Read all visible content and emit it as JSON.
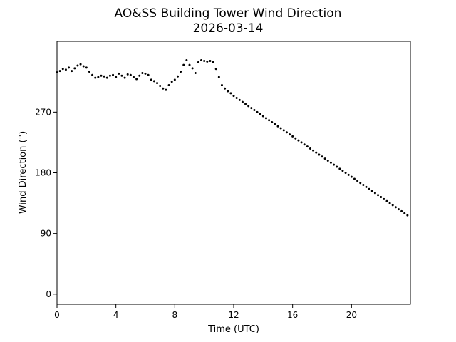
{
  "chart_data": {
    "type": "scatter",
    "title": "AO&SS Building Tower Wind Direction",
    "subtitle": "2026-03-14",
    "xlabel": "Time (UTC)",
    "ylabel": "Wind Direction (°)",
    "xlim": [
      0,
      24
    ],
    "ylim": [
      -15,
      375
    ],
    "xticks": [
      0,
      4,
      8,
      12,
      16,
      20
    ],
    "yticks": [
      0,
      90,
      180,
      270
    ],
    "grid": false,
    "marker_color": "#000000",
    "series": [
      {
        "x": [
          0.0,
          0.2,
          0.4,
          0.6,
          0.8,
          1.0,
          1.2,
          1.4,
          1.6,
          1.8,
          2.0,
          2.2,
          2.4,
          2.6,
          2.8,
          3.0,
          3.2,
          3.4,
          3.6,
          3.8,
          4.0,
          4.2,
          4.4,
          4.6,
          4.8,
          5.0,
          5.2,
          5.4,
          5.6,
          5.8,
          6.0,
          6.2,
          6.4,
          6.6,
          6.8,
          7.0,
          7.2,
          7.4,
          7.6,
          7.8,
          8.0,
          8.2,
          8.4,
          8.6,
          8.8,
          9.0,
          9.2,
          9.4,
          9.6,
          9.8,
          10.0,
          10.2,
          10.4,
          10.6,
          10.8,
          11.0,
          11.2,
          11.4,
          11.6,
          11.8,
          12.0,
          12.2,
          12.4,
          12.6,
          12.8,
          13.0,
          13.2,
          13.4,
          13.6,
          13.8,
          14.0,
          14.2,
          14.4,
          14.6,
          14.8,
          15.0,
          15.2,
          15.4,
          15.6,
          15.8,
          16.0,
          16.2,
          16.4,
          16.6,
          16.8,
          17.0,
          17.2,
          17.4,
          17.6,
          17.8,
          18.0,
          18.2,
          18.4,
          18.6,
          18.8,
          19.0,
          19.2,
          19.4,
          19.6,
          19.8,
          20.0,
          20.2,
          20.4,
          20.6,
          20.8,
          21.0,
          21.2,
          21.4,
          21.6,
          21.8,
          22.0,
          22.2,
          22.4,
          22.6,
          22.8,
          23.0,
          23.2,
          23.4,
          23.6,
          23.8
        ],
        "y": [
          329,
          331,
          334,
          333,
          336,
          331,
          335,
          339,
          341,
          338,
          336,
          330,
          325,
          321,
          322,
          324,
          323,
          321,
          324,
          325,
          322,
          327,
          324,
          321,
          326,
          325,
          322,
          319,
          324,
          328,
          327,
          325,
          318,
          316,
          313,
          309,
          305,
          303,
          310,
          315,
          318,
          323,
          330,
          340,
          347,
          340,
          335,
          328,
          344,
          347,
          346,
          345,
          346,
          344,
          334,
          322,
          310,
          305,
          301,
          298,
          294,
          291,
          288,
          285,
          282,
          279,
          276,
          273,
          270,
          267,
          264,
          261,
          258,
          255,
          252,
          249,
          246,
          243,
          240,
          237,
          234,
          231,
          228,
          225,
          222,
          219,
          216,
          213,
          210,
          207,
          204,
          201,
          198,
          195,
          192,
          189,
          186,
          183,
          180,
          177,
          174,
          171,
          168,
          165,
          162,
          159,
          156,
          153,
          150,
          147,
          144,
          141,
          138,
          135,
          132,
          129,
          126,
          123,
          120,
          117
        ]
      }
    ]
  }
}
